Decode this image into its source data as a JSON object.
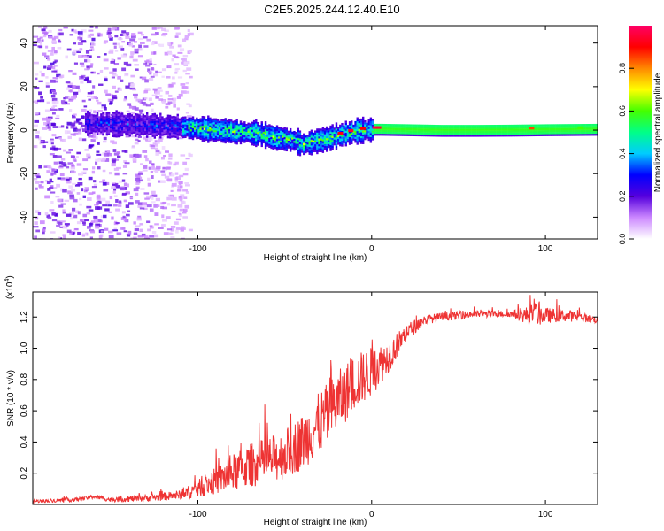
{
  "title": "C2E5.2025.244.12.40.E10",
  "chart_data": [
    {
      "type": "heatmap",
      "title": "C2E5.2025.244.12.40.E10",
      "xlabel": "Height of straight line (km)",
      "ylabel": "Frequency (Hz)",
      "xlim": [
        -195,
        130
      ],
      "ylim": [
        -50,
        48
      ],
      "xticks": [
        -100,
        0,
        100
      ],
      "yticks": [
        -40,
        -20,
        0,
        20,
        40
      ],
      "xtick_labels": [
        "-100",
        "0",
        "100"
      ],
      "ytick_labels": [
        "-40",
        "-20",
        "0",
        "20",
        "40"
      ],
      "colorbar": {
        "label": "Normalized spectral amplitude",
        "range": [
          0,
          1
        ],
        "ticks": [
          "0.0",
          "0.2",
          "0.4",
          "0.6",
          "0.8"
        ],
        "colors": [
          "#ffffff",
          "#cc88ff",
          "#5500dd",
          "#0000ff",
          "#00ccff",
          "#00ff88",
          "#44ff00",
          "#ffff00",
          "#ff8800",
          "#ff0000",
          "#ff0066"
        ]
      },
      "ridge": {
        "x": [
          -195,
          -170,
          -150,
          -130,
          -110,
          -95,
          -80,
          -65,
          -55,
          -45,
          -40,
          -35,
          -30,
          -25,
          -20,
          -15,
          -10,
          -5,
          0,
          5,
          20,
          40,
          60,
          80,
          100,
          130
        ],
        "y": [
          4,
          4,
          3.5,
          3,
          2,
          1,
          0,
          -1,
          -3,
          -4,
          -6,
          -5,
          -4,
          -3,
          -2,
          -1,
          0,
          0.5,
          1,
          1,
          0.8,
          0.5,
          0.5,
          0.6,
          0.8,
          1
        ]
      },
      "noise_region_x": [
        -195,
        -110
      ]
    },
    {
      "type": "line",
      "title": "",
      "xlabel": "Height of straight line (km)",
      "ylabel": "SNR (10 * v/v)",
      "scale_label": "(x10",
      "scale_exponent": "4",
      "xlim": [
        -195,
        130
      ],
      "ylim": [
        0,
        1.36
      ],
      "xticks": [
        -100,
        0,
        100
      ],
      "yticks": [
        0.2,
        0.4,
        0.6,
        0.8,
        1.0,
        1.2
      ],
      "xtick_labels": [
        "-100",
        "0",
        "100"
      ],
      "ytick_labels": [
        "0.2",
        "0.4",
        "0.6",
        "0.8",
        "1.0",
        "1.2"
      ],
      "color": "#ee3333",
      "series": [
        {
          "name": "SNR",
          "x": [
            -195,
            -170,
            -160,
            -150,
            -130,
            -110,
            -100,
            -90,
            -80,
            -70,
            -60,
            -50,
            -40,
            -30,
            -20,
            -10,
            0,
            10,
            20,
            30,
            40,
            50,
            60,
            70,
            80,
            90,
            95,
            100,
            110,
            120,
            130
          ],
          "y": [
            0.02,
            0.03,
            0.05,
            0.03,
            0.04,
            0.06,
            0.1,
            0.15,
            0.2,
            0.25,
            0.28,
            0.32,
            0.4,
            0.52,
            0.65,
            0.78,
            0.85,
            0.95,
            1.1,
            1.18,
            1.2,
            1.21,
            1.22,
            1.22,
            1.22,
            1.21,
            1.22,
            1.21,
            1.21,
            1.2,
            1.18
          ]
        }
      ],
      "noise_envelope": {
        "x": [
          -195,
          -150,
          -110,
          -95,
          -80,
          -70,
          -60,
          -50,
          -40,
          -30,
          -20,
          -10,
          0,
          10,
          20,
          30,
          80,
          95,
          100,
          130
        ],
        "amp": [
          0.01,
          0.015,
          0.03,
          0.07,
          0.12,
          0.14,
          0.15,
          0.16,
          0.18,
          0.2,
          0.2,
          0.18,
          0.16,
          0.1,
          0.06,
          0.03,
          0.02,
          0.08,
          0.05,
          0.02
        ]
      }
    }
  ]
}
